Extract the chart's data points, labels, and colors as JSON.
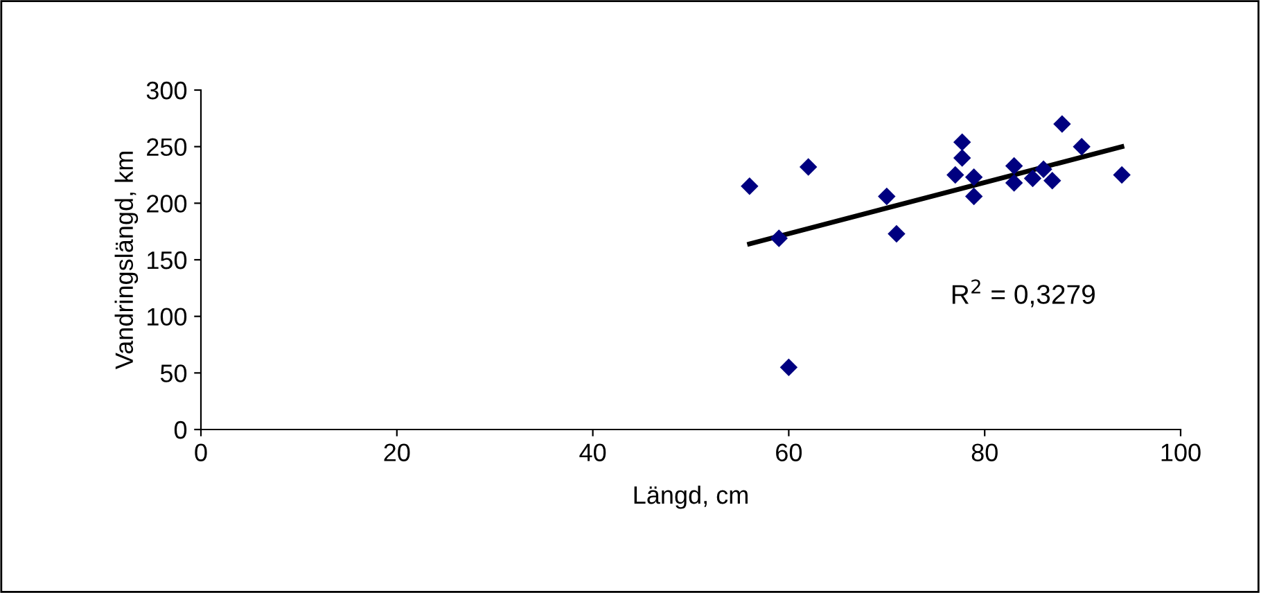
{
  "chart_data": {
    "type": "scatter",
    "xlabel": "Längd, cm",
    "ylabel": "Vandringslängd, km",
    "annotations": [
      "R$^{2}$ = 0,3279"
    ],
    "xlim": [
      0,
      100
    ],
    "xticks": [
      0,
      20,
      40,
      60,
      80,
      100
    ],
    "ylim": [
      0,
      300
    ],
    "yticks": [
      0,
      50,
      100,
      150,
      200,
      250,
      300
    ],
    "grid": false,
    "legend": false,
    "marker": "diamond",
    "series": [
      {
        "color": "#000080",
        "x": [
          56,
          59,
          60,
          62,
          70,
          71,
          77,
          77.7,
          77.7,
          78.9,
          78.9,
          83,
          83,
          84.9,
          86,
          86.9,
          87.9,
          89.9,
          94
        ],
        "values": [
          215,
          169,
          55,
          232,
          206,
          173,
          225,
          254,
          240,
          223,
          206,
          233,
          218,
          222,
          230,
          220,
          270,
          250,
          225
        ]
      },
      {
        "type": "line",
        "color": "#000000",
        "marker": "none",
        "x": [
          56,
          94
        ],
        "values": [
          164,
          250
        ]
      }
    ]
  }
}
